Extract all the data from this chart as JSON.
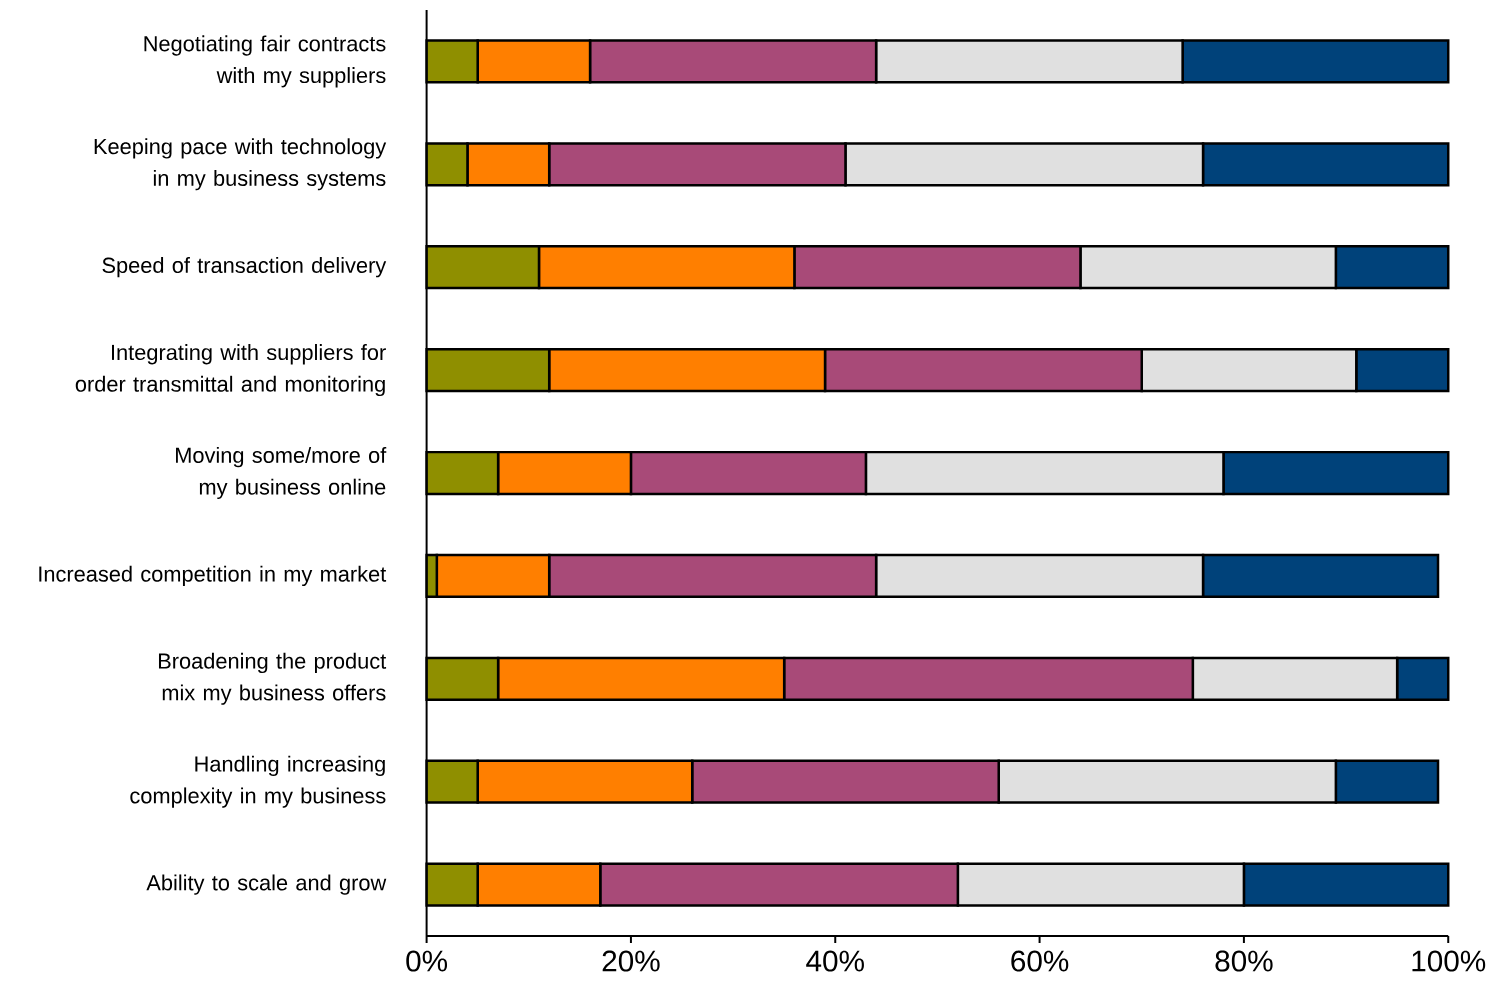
{
  "chart_data": {
    "type": "bar",
    "orientation": "horizontal",
    "stacked": true,
    "categories": [
      "Negotiating fair contracts with my suppliers",
      "Keeping pace with technology in my business systems",
      "Speed of transaction delivery",
      "Integrating with suppliers for order transmittal and monitoring",
      "Moving some/more of my business online",
      "Increased competition in my market",
      "Broadening the product mix my business offers",
      "Handling increasing complexity in my business",
      "Ability to scale and grow"
    ],
    "series": [
      {
        "color": "#8f8f00",
        "values": [
          5,
          4,
          11,
          12,
          7,
          1,
          7,
          5,
          5
        ]
      },
      {
        "color": "#ff7f00",
        "values": [
          11,
          8,
          25,
          27,
          13,
          11,
          28,
          21,
          12
        ]
      },
      {
        "color": "#a84a78",
        "values": [
          28,
          29,
          28,
          31,
          23,
          32,
          40,
          30,
          35
        ]
      },
      {
        "color": "#e0e0e0",
        "values": [
          30,
          35,
          25,
          21,
          35,
          32,
          20,
          33,
          28
        ]
      },
      {
        "color": "#00427a",
        "values": [
          26,
          24,
          11,
          9,
          22,
          23,
          5,
          10,
          20
        ]
      }
    ],
    "xlim": [
      0,
      100
    ],
    "xticks": [
      {
        "value": 0,
        "label": "0%"
      },
      {
        "value": 20,
        "label": "20%"
      },
      {
        "value": 40,
        "label": "40%"
      },
      {
        "value": 60,
        "label": "60%"
      },
      {
        "value": 80,
        "label": "80%"
      },
      {
        "value": 100,
        "label": "100%"
      }
    ]
  }
}
